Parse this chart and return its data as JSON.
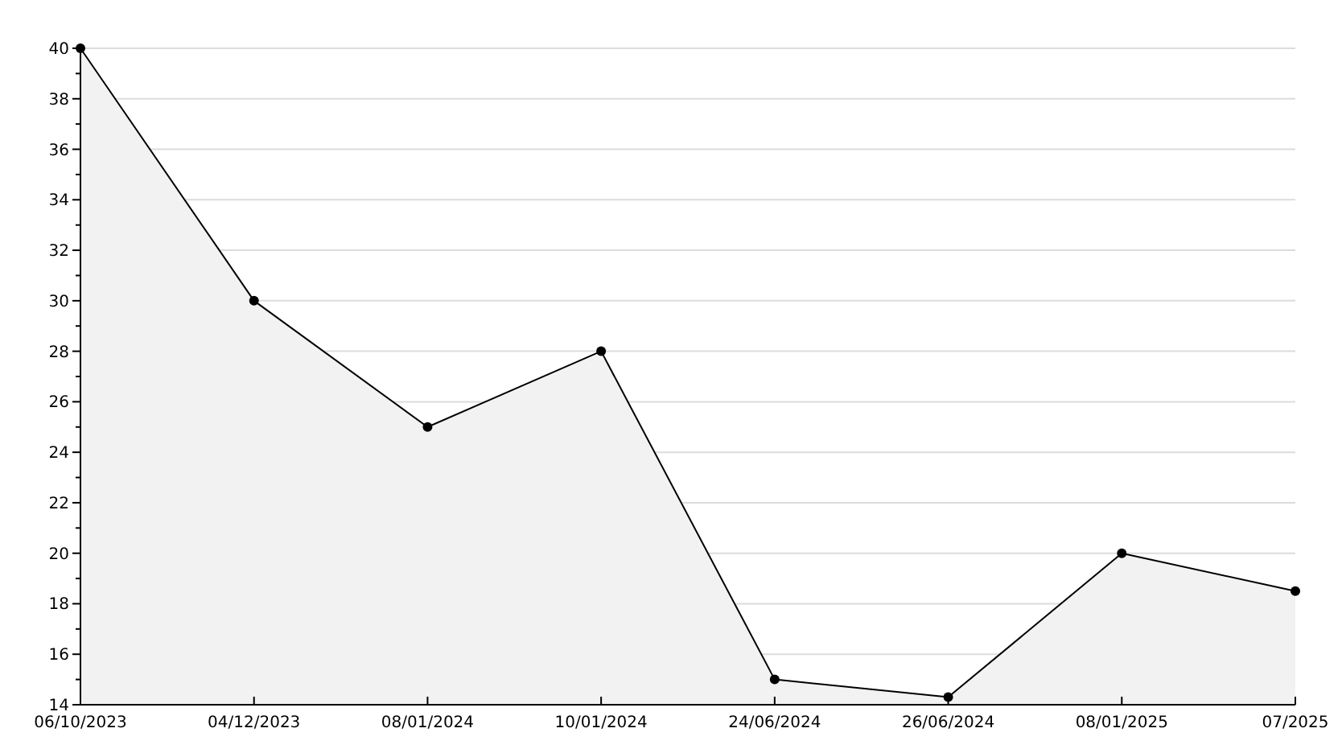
{
  "chart_data": {
    "type": "area",
    "categories": [
      "06/10/2023",
      "04/12/2023",
      "08/01/2024",
      "10/01/2024",
      "24/06/2024",
      "26/06/2024",
      "08/01/2025",
      "07/2025"
    ],
    "series": [
      {
        "color": "#000000",
        "values": [
          40,
          30,
          25,
          28,
          15,
          14.3,
          20,
          18.5
        ]
      }
    ],
    "ylim": [
      14,
      40
    ],
    "yticks": [
      14,
      {
        "value": 15,
        "label": null
      },
      16,
      {
        "value": 17,
        "label": null
      },
      18,
      {
        "value": 19,
        "label": null
      },
      20,
      {
        "value": 21,
        "label": null
      },
      22,
      {
        "value": 23,
        "label": null
      },
      24,
      {
        "value": 25,
        "label": null
      },
      26,
      {
        "value": 27,
        "label": null
      },
      28,
      {
        "value": 29,
        "label": null
      },
      30,
      {
        "value": 31,
        "label": null
      },
      32,
      {
        "value": 33,
        "label": null
      },
      34,
      {
        "value": 35,
        "label": null
      },
      36,
      {
        "value": 37,
        "label": null
      },
      38,
      {
        "value": 39,
        "label": null
      },
      40
    ],
    "grid": "y",
    "marker": "circle"
  }
}
